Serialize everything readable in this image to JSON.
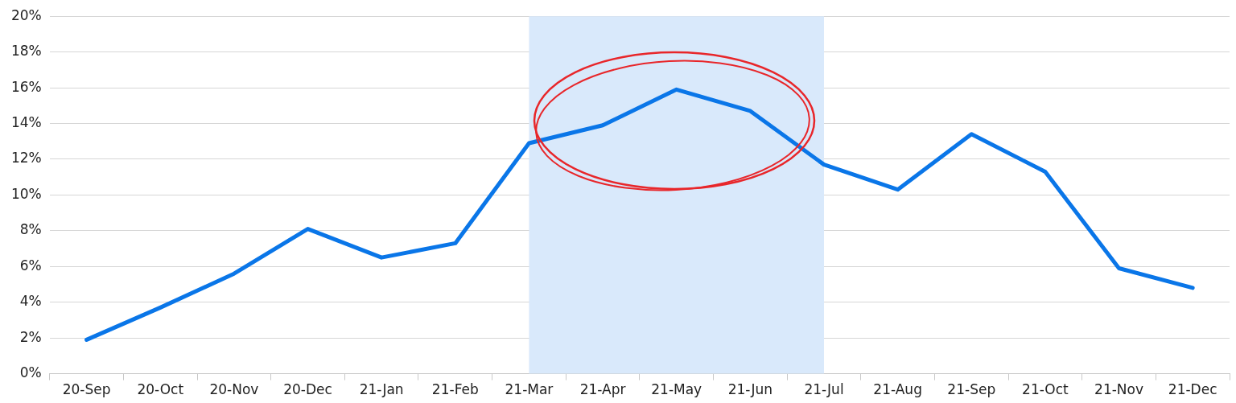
{
  "chart_data": {
    "type": "line",
    "categories": [
      "20-Sep",
      "20-Oct",
      "20-Nov",
      "20-Dec",
      "21-Jan",
      "21-Feb",
      "21-Mar",
      "21-Apr",
      "21-May",
      "21-Jun",
      "21-Jul",
      "21-Aug",
      "21-Sep",
      "21-Oct",
      "21-Nov",
      "21-Dec"
    ],
    "series": [
      {
        "color": "#0a76e8",
        "values": [
          1.9,
          3.7,
          5.6,
          8.1,
          6.5,
          7.3,
          12.9,
          13.9,
          15.9,
          14.7,
          11.7,
          10.3,
          13.4,
          11.3,
          5.9,
          4.8
        ]
      }
    ],
    "ylim": [
      0,
      20
    ],
    "yticks": [
      {
        "value": 0,
        "label": "0%"
      },
      {
        "value": 2,
        "label": "2%"
      },
      {
        "value": 4,
        "label": "4%"
      },
      {
        "value": 6,
        "label": "6%"
      },
      {
        "value": 8,
        "label": "8%"
      },
      {
        "value": 10,
        "label": "10%"
      },
      {
        "value": 12,
        "label": "12%"
      },
      {
        "value": 14,
        "label": "14%"
      },
      {
        "value": 16,
        "label": "16%"
      },
      {
        "value": 18,
        "label": "18%"
      },
      {
        "value": 20,
        "label": "20%"
      }
    ],
    "bands": [
      {
        "axis": "x",
        "from": "21-Mar",
        "to": "21-Jul",
        "color": "#d9e9fb"
      }
    ],
    "grid": "y",
    "legend": false,
    "marker": "none",
    "line_style": "solid"
  }
}
